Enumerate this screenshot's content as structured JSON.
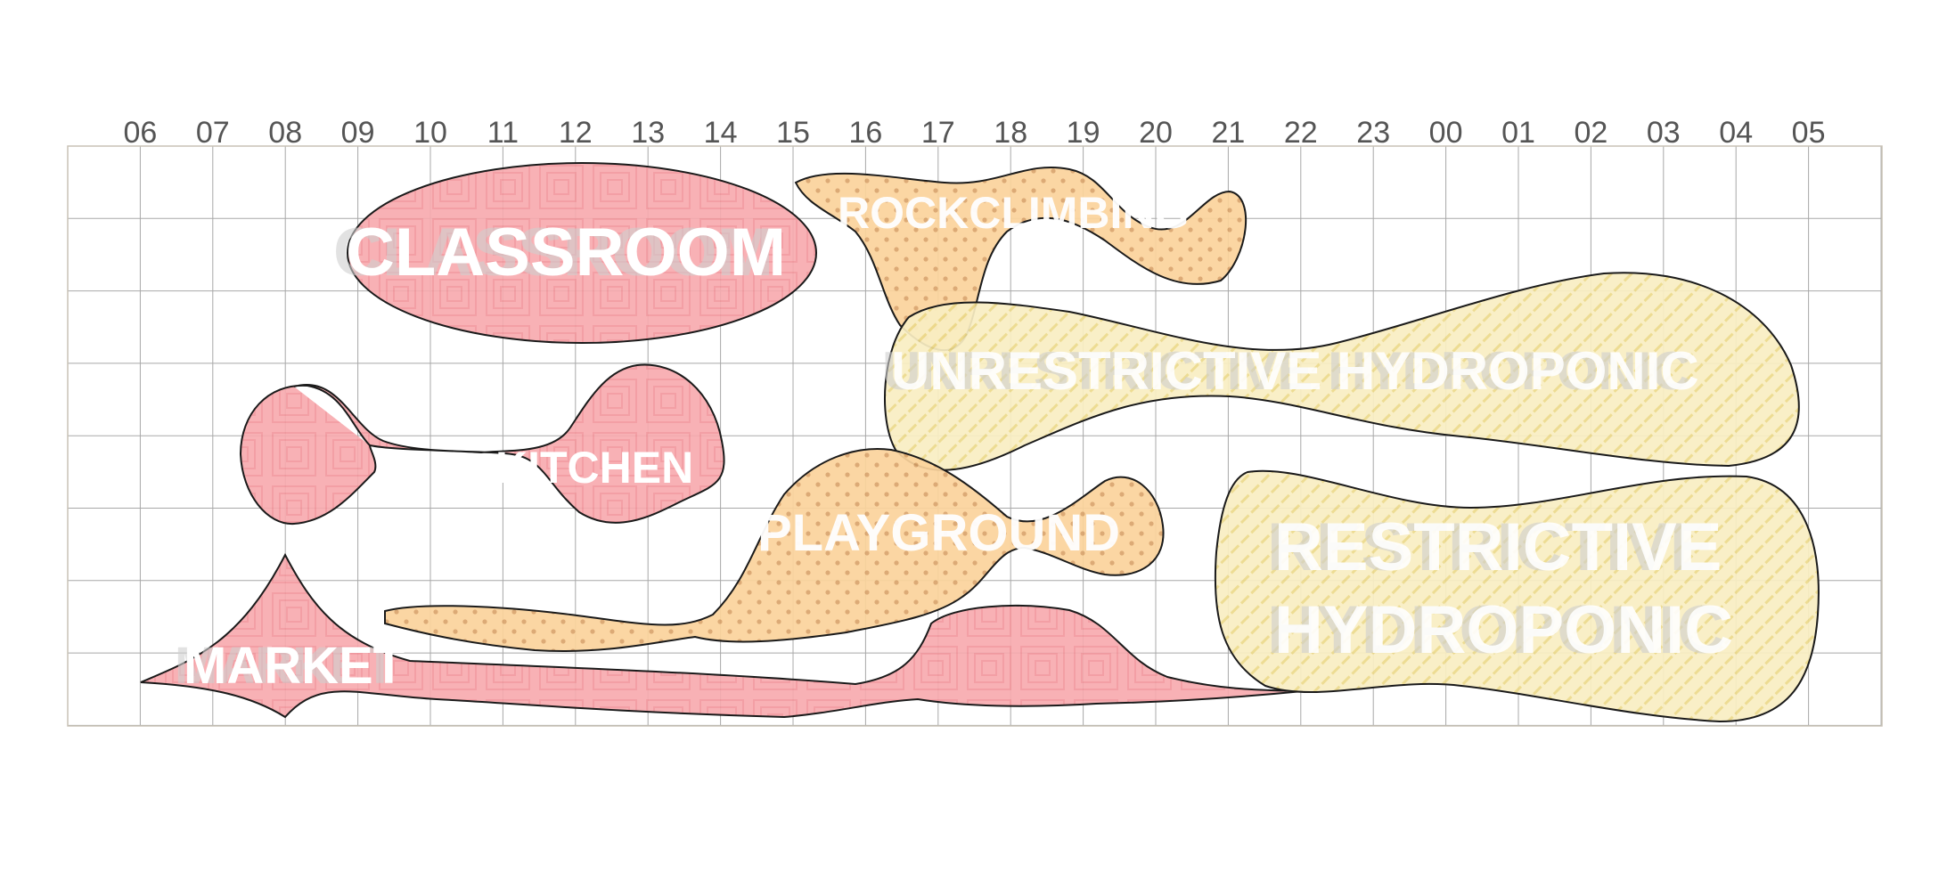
{
  "timeline": {
    "hours": [
      "06",
      "07",
      "08",
      "09",
      "10",
      "11",
      "12",
      "13",
      "14",
      "15",
      "16",
      "17",
      "18",
      "19",
      "20",
      "21",
      "22",
      "23",
      "00",
      "01",
      "02",
      "03",
      "04",
      "05"
    ]
  },
  "zones": {
    "classroom": {
      "label": "CLASSROOM",
      "category": "pink"
    },
    "kitchen": {
      "label": "KITCHEN",
      "category": "pink"
    },
    "market": {
      "label": "MARKET",
      "category": "pink"
    },
    "rockclimbing": {
      "label": "ROCKCLIMBING",
      "category": "orange"
    },
    "playground": {
      "label": "PLAYGROUND",
      "category": "orange"
    },
    "unrestrictive_hydroponic": {
      "label": "UNRESTRICTIVE HYDROPONIC",
      "category": "yellow"
    },
    "restrictive_hydroponic": {
      "label_line1": "RESTRICTIVE",
      "label_line2": "HYDROPONIC",
      "category": "yellow"
    }
  },
  "colors": {
    "pink_fill": "#f7a9ad",
    "pink_pattern": "#f49aa0",
    "orange_fill": "#fbd39b",
    "orange_dot": "#d9a36a",
    "yellow_fill": "#f9eec2",
    "yellow_hatch": "#ecd98a",
    "grid": "#a8a8a8",
    "outline": "#1a1a1a"
  }
}
